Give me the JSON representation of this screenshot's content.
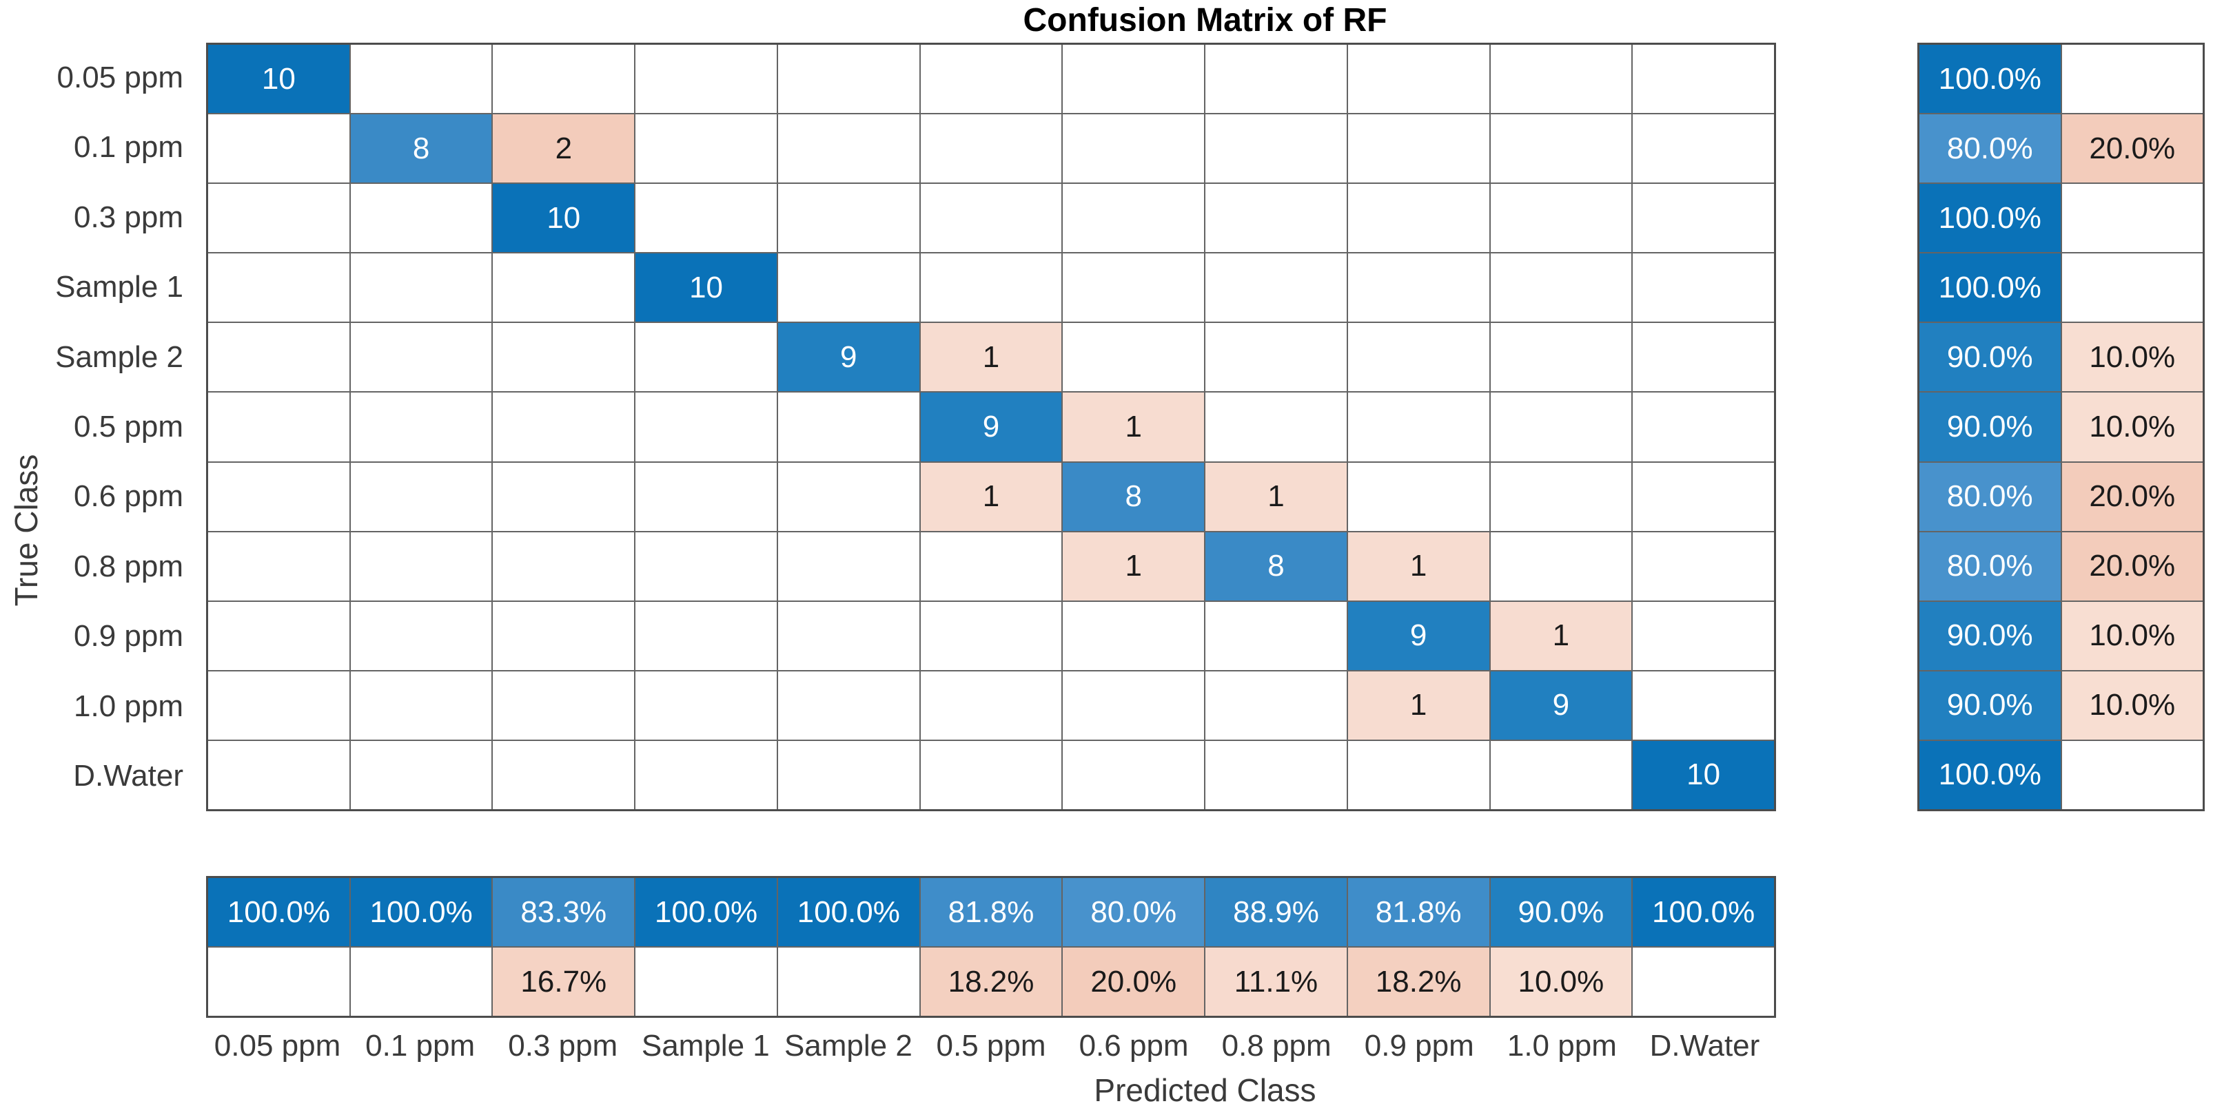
{
  "title": "Confusion Matrix of RF",
  "axes": {
    "xlabel": "Predicted Class",
    "ylabel": "True Class"
  },
  "chart_data": {
    "type": "heatmap",
    "subtype": "confusion-matrix",
    "title": "Confusion Matrix of RF",
    "xlabel": "Predicted Class",
    "ylabel": "True Class",
    "classes": [
      "0.05 ppm",
      "0.1 ppm",
      "0.3 ppm",
      "Sample 1",
      "Sample 2",
      "0.5 ppm",
      "0.6 ppm",
      "0.8 ppm",
      "0.9 ppm",
      "1.0 ppm",
      "D.Water"
    ],
    "matrix": [
      [
        10,
        0,
        0,
        0,
        0,
        0,
        0,
        0,
        0,
        0,
        0
      ],
      [
        0,
        8,
        2,
        0,
        0,
        0,
        0,
        0,
        0,
        0,
        0
      ],
      [
        0,
        0,
        10,
        0,
        0,
        0,
        0,
        0,
        0,
        0,
        0
      ],
      [
        0,
        0,
        0,
        10,
        0,
        0,
        0,
        0,
        0,
        0,
        0
      ],
      [
        0,
        0,
        0,
        0,
        9,
        1,
        0,
        0,
        0,
        0,
        0
      ],
      [
        0,
        0,
        0,
        0,
        0,
        9,
        1,
        0,
        0,
        0,
        0
      ],
      [
        0,
        0,
        0,
        0,
        0,
        1,
        8,
        1,
        0,
        0,
        0
      ],
      [
        0,
        0,
        0,
        0,
        0,
        0,
        1,
        8,
        1,
        0,
        0
      ],
      [
        0,
        0,
        0,
        0,
        0,
        0,
        0,
        0,
        9,
        1,
        0
      ],
      [
        0,
        0,
        0,
        0,
        0,
        0,
        0,
        0,
        1,
        9,
        0
      ],
      [
        0,
        0,
        0,
        0,
        0,
        0,
        0,
        0,
        0,
        0,
        10
      ]
    ],
    "row_summary": [
      [
        "100.0%",
        ""
      ],
      [
        "80.0%",
        "20.0%"
      ],
      [
        "100.0%",
        ""
      ],
      [
        "100.0%",
        ""
      ],
      [
        "90.0%",
        "10.0%"
      ],
      [
        "90.0%",
        "10.0%"
      ],
      [
        "80.0%",
        "20.0%"
      ],
      [
        "80.0%",
        "20.0%"
      ],
      [
        "90.0%",
        "10.0%"
      ],
      [
        "90.0%",
        "10.0%"
      ],
      [
        "100.0%",
        ""
      ]
    ],
    "col_summary": [
      [
        "100.0%",
        ""
      ],
      [
        "100.0%",
        ""
      ],
      [
        "83.3%",
        "16.7%"
      ],
      [
        "100.0%",
        ""
      ],
      [
        "100.0%",
        ""
      ],
      [
        "81.8%",
        "18.2%"
      ],
      [
        "80.0%",
        "20.0%"
      ],
      [
        "88.9%",
        "11.1%"
      ],
      [
        "81.8%",
        "18.2%"
      ],
      [
        "90.0%",
        "10.0%"
      ],
      [
        "100.0%",
        ""
      ]
    ]
  },
  "colors": {
    "diagonal_by_count": {
      "8": "#3a8ac6",
      "9": "#2180c0",
      "10": "#0a72b8"
    },
    "off_diagonal_by_count": {
      "1": "#f7dcd0",
      "2": "#f3ccbb"
    },
    "summary_correct": {
      "80.0%": "#4892cc",
      "81.8%": "#3f8dc9",
      "83.3%": "#3a8ac6",
      "88.9%": "#2f85c3",
      "90.0%": "#2180c0",
      "100.0%": "#0a72b8"
    },
    "summary_incorrect": {
      "10.0%": "#f8ded2",
      "11.1%": "#f7dace",
      "16.7%": "#f5d3c4",
      "18.2%": "#f4d0c0",
      "20.0%": "#f3ccbb"
    },
    "empty_cell": "#ffffff",
    "grid_line": "#646464",
    "outer_border": "#4c4c4c",
    "text_on_blue": "#ffffff",
    "text_on_salmon": "#1a1a1a",
    "axis_text": "#3a3a3a",
    "title_text": "#000000"
  }
}
